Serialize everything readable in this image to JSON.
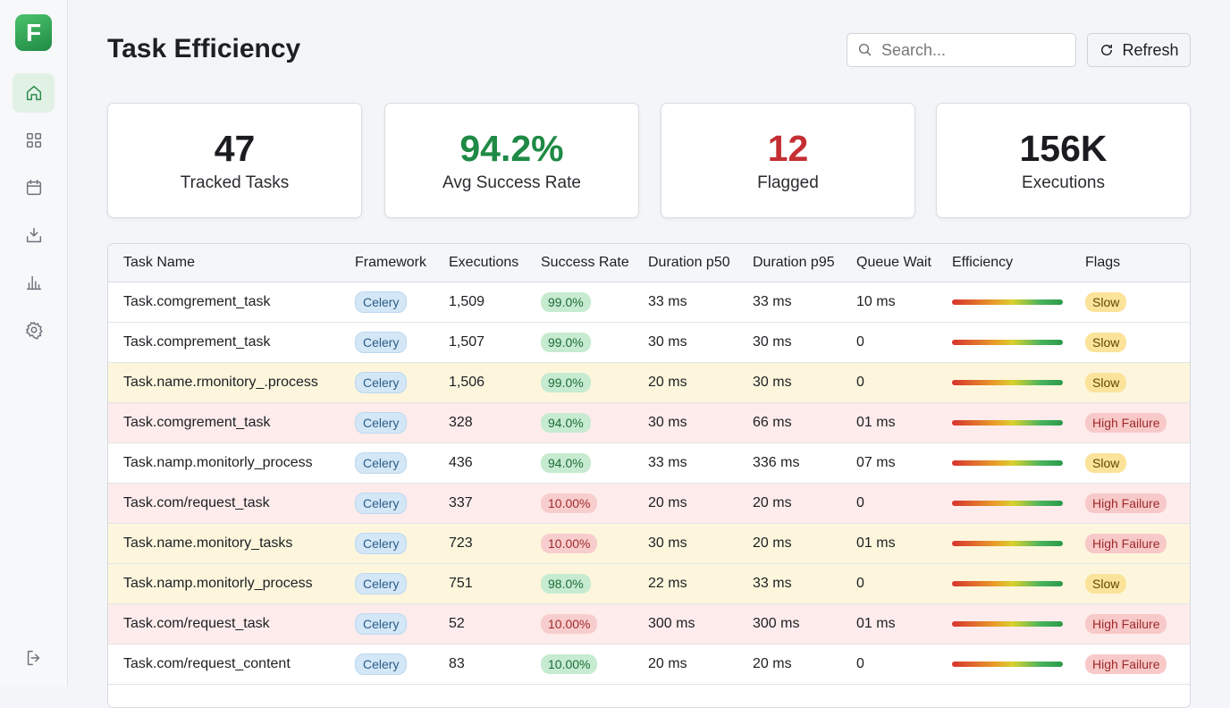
{
  "sidebar": {
    "logo": "F"
  },
  "header": {
    "title": "Task Efficiency",
    "search_placeholder": "Search...",
    "refresh": "Refresh"
  },
  "stats": [
    {
      "value": "47",
      "label": "Tracked Tasks",
      "tone": "neutral"
    },
    {
      "value": "94.2%",
      "label": "Avg Success Rate",
      "tone": "good"
    },
    {
      "value": "12",
      "label": "Flagged",
      "tone": "bad"
    },
    {
      "value": "156K",
      "label": "Executions",
      "tone": "neutral"
    }
  ],
  "table": {
    "columns": [
      "Task Name",
      "Framework",
      "Executions",
      "Success Rate",
      "Duration p50",
      "Duration p95",
      "Queue Wait",
      "Efficiency",
      "Flags"
    ],
    "rows": [
      {
        "task": "Task.comgrement_task",
        "framework": "Celery",
        "executions": "1,509",
        "success_rate": "99.0%",
        "p50": "33 ms",
        "p95": "33 ms",
        "queue_wait": "10 ms",
        "flag": "Slow",
        "tint": "none",
        "success_tone": "good",
        "flag_tone": "warning"
      },
      {
        "task": "Task.comprement_task",
        "framework": "Celery",
        "executions": "1,507",
        "success_rate": "99.0%",
        "p50": "30 ms",
        "p95": "30 ms",
        "queue_wait": "0",
        "flag": "Slow",
        "tint": "none",
        "success_tone": "good",
        "flag_tone": "warning"
      },
      {
        "task": "Task.name.rmonitory_.process",
        "framework": "Celery",
        "executions": "1,506",
        "success_rate": "99.0%",
        "p50": "20 ms",
        "p95": "30 ms",
        "queue_wait": "0",
        "flag": "Slow",
        "tint": "warning",
        "success_tone": "good",
        "flag_tone": "warning"
      },
      {
        "task": "Task.comgrement_task",
        "framework": "Celery",
        "executions": "328",
        "success_rate": "94.0%",
        "p50": "30 ms",
        "p95": "66 ms",
        "queue_wait": "01 ms",
        "flag": "High Failure",
        "tint": "danger",
        "success_tone": "good",
        "flag_tone": "danger"
      },
      {
        "task": "Task.namp.monitorly_process",
        "framework": "Celery",
        "executions": "436",
        "success_rate": "94.0%",
        "p50": "33 ms",
        "p95": "336 ms",
        "queue_wait": "07 ms",
        "flag": "Slow",
        "tint": "none",
        "success_tone": "good",
        "flag_tone": "warning"
      },
      {
        "task": "Task.com/request_task",
        "framework": "Celery",
        "executions": "337",
        "success_rate": "10.00%",
        "p50": "20 ms",
        "p95": "20 ms",
        "queue_wait": "0",
        "flag": "High Failure",
        "tint": "danger",
        "success_tone": "bad",
        "flag_tone": "danger"
      },
      {
        "task": "Task.name.monitory_tasks",
        "framework": "Celery",
        "executions": "723",
        "success_rate": "10.00%",
        "p50": "30 ms",
        "p95": "20 ms",
        "queue_wait": "01 ms",
        "flag": "High Failure",
        "tint": "warning",
        "success_tone": "bad",
        "flag_tone": "danger"
      },
      {
        "task": "Task.namp.monitorly_process",
        "framework": "Celery",
        "executions": "751",
        "success_rate": "98.0%",
        "p50": "22 ms",
        "p95": "33 ms",
        "queue_wait": "0",
        "flag": "Slow",
        "tint": "warning",
        "success_tone": "good",
        "flag_tone": "warning"
      },
      {
        "task": "Task.com/request_task",
        "framework": "Celery",
        "executions": "52",
        "success_rate": "10.00%",
        "p50": "300 ms",
        "p95": "300 ms",
        "queue_wait": "01 ms",
        "flag": "High Failure",
        "tint": "danger",
        "success_tone": "bad",
        "flag_tone": "danger"
      },
      {
        "task": "Task.com/request_content",
        "framework": "Celery",
        "executions": "83",
        "success_rate": "10.00%",
        "p50": "20 ms",
        "p95": "20 ms",
        "queue_wait": "0",
        "flag": "High Failure",
        "tint": "none",
        "success_tone": "good",
        "flag_tone": "danger"
      }
    ]
  }
}
